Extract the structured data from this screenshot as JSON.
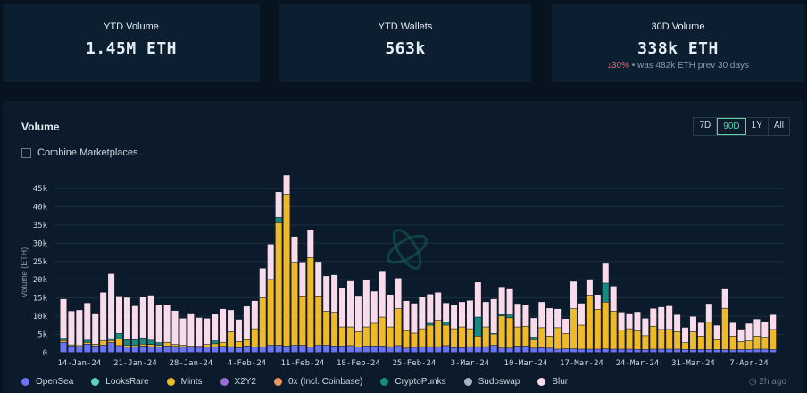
{
  "cards": [
    {
      "label": "YTD Volume",
      "value": "1.45M ETH"
    },
    {
      "label": "YTD Wallets",
      "value": "563k"
    },
    {
      "label": "30D Volume",
      "value": "338k ETH",
      "change": "30%",
      "change_direction": "down",
      "note": "• was 482k ETH prev 30 days"
    }
  ],
  "panel": {
    "title": "Volume",
    "ranges": [
      "7D",
      "90D",
      "1Y",
      "All"
    ],
    "active_range": "90D",
    "combine_label": "Combine Marketplaces",
    "combine_checked": false,
    "updated": "2h ago"
  },
  "colors": {
    "OpenSea": "#6b73f5",
    "LooksRare": "#5ecfc2",
    "Mints": "#f0b929",
    "X2Y2": "#9b6bd0",
    "0x (Incl. Coinbase)": "#f0955a",
    "CryptoPunks": "#1a8a80",
    "Sudoswap": "#a8b4cc",
    "Blur": "#fadbea"
  },
  "chart_data": {
    "type": "bar",
    "stacked": true,
    "title": "Volume",
    "xlabel": "",
    "ylabel": "Volume (ETH)",
    "ylim": [
      0,
      48000
    ],
    "yticks": [
      0,
      5000,
      10000,
      15000,
      20000,
      25000,
      30000,
      35000,
      40000,
      45000
    ],
    "ytick_labels": [
      "0",
      "5k",
      "10k",
      "15k",
      "20k",
      "25k",
      "30k",
      "35k",
      "40k",
      "45k"
    ],
    "start_date": "12-Jan-24",
    "days": 90,
    "xtick_labels": [
      {
        "day": 2,
        "label": "14-Jan-24"
      },
      {
        "day": 9,
        "label": "21-Jan-24"
      },
      {
        "day": 16,
        "label": "28-Jan-24"
      },
      {
        "day": 23,
        "label": "4-Feb-24"
      },
      {
        "day": 30,
        "label": "11-Feb-24"
      },
      {
        "day": 37,
        "label": "18-Feb-24"
      },
      {
        "day": 44,
        "label": "25-Feb-24"
      },
      {
        "day": 51,
        "label": "3-Mar-24"
      },
      {
        "day": 58,
        "label": "10-Mar-24"
      },
      {
        "day": 65,
        "label": "17-Mar-24"
      },
      {
        "day": 72,
        "label": "24-Mar-24"
      },
      {
        "day": 79,
        "label": "31-Mar-24"
      },
      {
        "day": 86,
        "label": "7-Apr-24"
      }
    ],
    "legend": [
      "OpenSea",
      "LooksRare",
      "Mints",
      "X2Y2",
      "0x (Incl. Coinbase)",
      "CryptoPunks",
      "Sudoswap",
      "Blur"
    ],
    "legend_position": "bottom",
    "series": [
      {
        "name": "OpenSea",
        "values": [
          2.8,
          1.8,
          1.6,
          2.3,
          1.8,
          2,
          2.7,
          1.9,
          1.5,
          1.6,
          1.8,
          1.6,
          1.5,
          1.8,
          1.7,
          1.6,
          1.5,
          1.4,
          1.5,
          1.6,
          1.7,
          1.6,
          1.3,
          1.8,
          1.5,
          1.5,
          2,
          2,
          1.8,
          2,
          2,
          1.5,
          2,
          2,
          1.8,
          1.8,
          1.9,
          1.5,
          1.8,
          1.8,
          1.8,
          1.6,
          1.9,
          1.2,
          1.4,
          1.6,
          1.6,
          1.6,
          1.9,
          1.3,
          1.3,
          1.6,
          1.6,
          1.6,
          2,
          1.2,
          1.2,
          1.8,
          1.8,
          1.2,
          1.3,
          1.2,
          0.9,
          1,
          1,
          0.9,
          0.9,
          0.9,
          1,
          0.9,
          0.9,
          0.9,
          0.8,
          0.8,
          0.9,
          0.9,
          0.9,
          0.9,
          0.8,
          0.8,
          0.8,
          0.8,
          0.8,
          0.8,
          0.7,
          0.8,
          0.8,
          0.9,
          0.9,
          0.8
        ]
      },
      {
        "name": "Mints",
        "values": [
          0.5,
          0.3,
          0.3,
          0.5,
          0.5,
          1.3,
          0.6,
          1.8,
          0.5,
          0.4,
          0.5,
          0.6,
          0.5,
          1,
          0.5,
          0.4,
          0.3,
          0.3,
          0.7,
          0.8,
          1.1,
          4.1,
          1.7,
          1.7,
          5,
          13.5,
          18,
          33.5,
          41.5,
          22.7,
          13.5,
          24.5,
          13.5,
          9.3,
          9.2,
          5.2,
          5.1,
          4.2,
          5.2,
          6.2,
          7.9,
          5.4,
          10.1,
          4.8,
          3.9,
          4.9,
          5.9,
          7.2,
          5.6,
          5.2,
          5.7,
          4.9,
          2.9,
          5.4,
          3,
          8.8,
          8.3,
          5.2,
          5.4,
          2.3,
          5.5,
          3.3,
          5.9,
          4.2,
          11,
          6.6,
          14.8,
          10.9,
          12.8,
          10.4,
          5.3,
          5.6,
          5.1,
          3.8,
          6.3,
          5.4,
          5.4,
          4.8,
          1.9,
          4.9,
          3.7,
          7.5,
          2.7,
          11.3,
          3.8,
          2.2,
          2.4,
          3.6,
          3.3,
          5.5
        ]
      },
      {
        "name": "CryptoPunks",
        "values": [
          0.6,
          0,
          0,
          0.6,
          0,
          0,
          0.5,
          1.5,
          1.5,
          1.5,
          1.7,
          1.2,
          0.7,
          0,
          0,
          0,
          0,
          0,
          0,
          0.8,
          0,
          0,
          0,
          0,
          0,
          0,
          0,
          1.5,
          0,
          0,
          0,
          0,
          0,
          0,
          0,
          0,
          0,
          0,
          0,
          0,
          0,
          0,
          0,
          0,
          0,
          0,
          0.5,
          0,
          0.8,
          0,
          0,
          0,
          5.2,
          0,
          0.2,
          0.4,
          0.8,
          0,
          0,
          0.7,
          0,
          0,
          0,
          0,
          0,
          0,
          0,
          0,
          5.2,
          0,
          0,
          0,
          0,
          0,
          0,
          0,
          0,
          0,
          0,
          0,
          0,
          0,
          0,
          0,
          0,
          0,
          0,
          0,
          0,
          0
        ]
      },
      {
        "name": "Blur",
        "values": [
          10.8,
          9.3,
          9.8,
          10.2,
          8.5,
          13.2,
          17.8,
          10.3,
          11.6,
          9.3,
          11.2,
          12.3,
          10.3,
          10.4,
          9.3,
          7.4,
          9,
          7.9,
          7.2,
          7.4,
          9.2,
          6,
          6.1,
          9.2,
          7.7,
          8.1,
          9.7,
          7,
          5.3,
          7.1,
          9.3,
          7.7,
          9.4,
          9.7,
          10.3,
          10.8,
          12.6,
          9.9,
          13,
          8.8,
          12.7,
          8.9,
          8.4,
          8.2,
          8.2,
          8.7,
          8,
          7.7,
          5.3,
          6.5,
          6.9,
          7.8,
          9.6,
          6.9,
          9.5,
          7.6,
          7.1,
          6.4,
          6,
          5.3,
          7.1,
          7.7,
          5.2,
          4.1,
          7.5,
          6,
          4.4,
          4.1,
          5.4,
          6.9,
          4.9,
          4.3,
          5.3,
          4.8,
          4.9,
          6.2,
          6.5,
          4.7,
          4.2,
          4.2,
          3.7,
          5.1,
          4,
          5.3,
          3.7,
          3.4,
          4.8,
          4.7,
          4.2,
          4.1
        ]
      }
    ],
    "value_unit": "thousand ETH"
  }
}
